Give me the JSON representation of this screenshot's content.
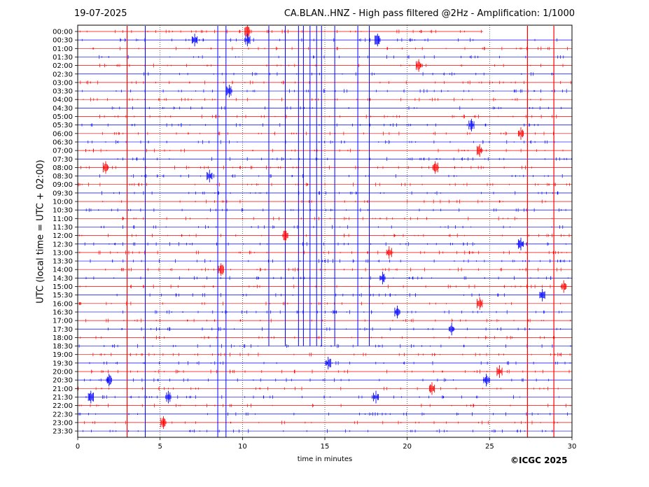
{
  "header": {
    "date": "19-07-2025",
    "title": "CA.BLAN..HNZ - High pass filtered @2Hz - Amplification: 1/1000"
  },
  "footer": {
    "copyright": "©ICGC 2025"
  },
  "chart_data": {
    "type": "line",
    "title": "CA.BLAN..HNZ - High pass filtered @2Hz - Amplification: 1/1000",
    "xlabel": "time in minutes",
    "ylabel": "UTC (local time = UTC + 02:00)",
    "xlim": [
      0,
      30
    ],
    "x_ticks": [
      0,
      5,
      10,
      15,
      20,
      25,
      30
    ],
    "y_ticks": [
      "00:00",
      "00:30",
      "01:00",
      "01:30",
      "02:00",
      "02:30",
      "03:00",
      "03:30",
      "04:00",
      "04:30",
      "05:00",
      "05:30",
      "06:00",
      "06:30",
      "07:00",
      "07:30",
      "08:00",
      "08:30",
      "09:00",
      "09:30",
      "10:00",
      "10:30",
      "11:00",
      "11:30",
      "12:00",
      "12:30",
      "13:00",
      "13:30",
      "14:00",
      "14:30",
      "15:00",
      "15:30",
      "16:00",
      "16:30",
      "17:00",
      "17:30",
      "18:00",
      "18:30",
      "19:00",
      "19:30",
      "20:00",
      "20:30",
      "21:00",
      "21:30",
      "22:00",
      "22:30",
      "23:00",
      "23:30"
    ],
    "trace_colors": [
      "#ff0000",
      "#0000ff"
    ],
    "vertical_grid": "dotted",
    "first_trace_end_minute": 24.6,
    "spikes_red": [
      3.0,
      27.3,
      28.9
    ],
    "spikes_blue": [
      4.1,
      8.5,
      9.0,
      11.6,
      12.6,
      13.4,
      13.7,
      14.1,
      14.5,
      14.8,
      15.6,
      17.0,
      17.7
    ],
    "events": [
      {
        "trace": "00:00",
        "minute": 10.3
      },
      {
        "trace": "00:30",
        "minute": 7.1
      },
      {
        "trace": "00:30",
        "minute": 10.3
      },
      {
        "trace": "00:30",
        "minute": 18.2
      },
      {
        "trace": "02:00",
        "minute": 20.7
      },
      {
        "trace": "03:30",
        "minute": 9.2
      },
      {
        "trace": "05:30",
        "minute": 23.9
      },
      {
        "trace": "06:00",
        "minute": 26.9
      },
      {
        "trace": "07:00",
        "minute": 24.4
      },
      {
        "trace": "08:00",
        "minute": 1.7
      },
      {
        "trace": "08:00",
        "minute": 21.7
      },
      {
        "trace": "08:30",
        "minute": 8.0
      },
      {
        "trace": "12:00",
        "minute": 12.6
      },
      {
        "trace": "12:30",
        "minute": 26.9
      },
      {
        "trace": "13:00",
        "minute": 18.9
      },
      {
        "trace": "14:00",
        "minute": 8.7
      },
      {
        "trace": "14:30",
        "minute": 18.5
      },
      {
        "trace": "15:00",
        "minute": 29.5
      },
      {
        "trace": "15:30",
        "minute": 28.2
      },
      {
        "trace": "16:00",
        "minute": 24.4
      },
      {
        "trace": "16:30",
        "minute": 19.4
      },
      {
        "trace": "17:30",
        "minute": 22.7
      },
      {
        "trace": "19:30",
        "minute": 15.2
      },
      {
        "trace": "20:00",
        "minute": 25.6
      },
      {
        "trace": "20:30",
        "minute": 24.8
      },
      {
        "trace": "20:30",
        "minute": 1.9
      },
      {
        "trace": "21:00",
        "minute": 21.5
      },
      {
        "trace": "21:30",
        "minute": 0.8
      },
      {
        "trace": "21:30",
        "minute": 18.1
      },
      {
        "trace": "21:30",
        "minute": 5.5
      },
      {
        "trace": "23:00",
        "minute": 5.2
      }
    ]
  }
}
